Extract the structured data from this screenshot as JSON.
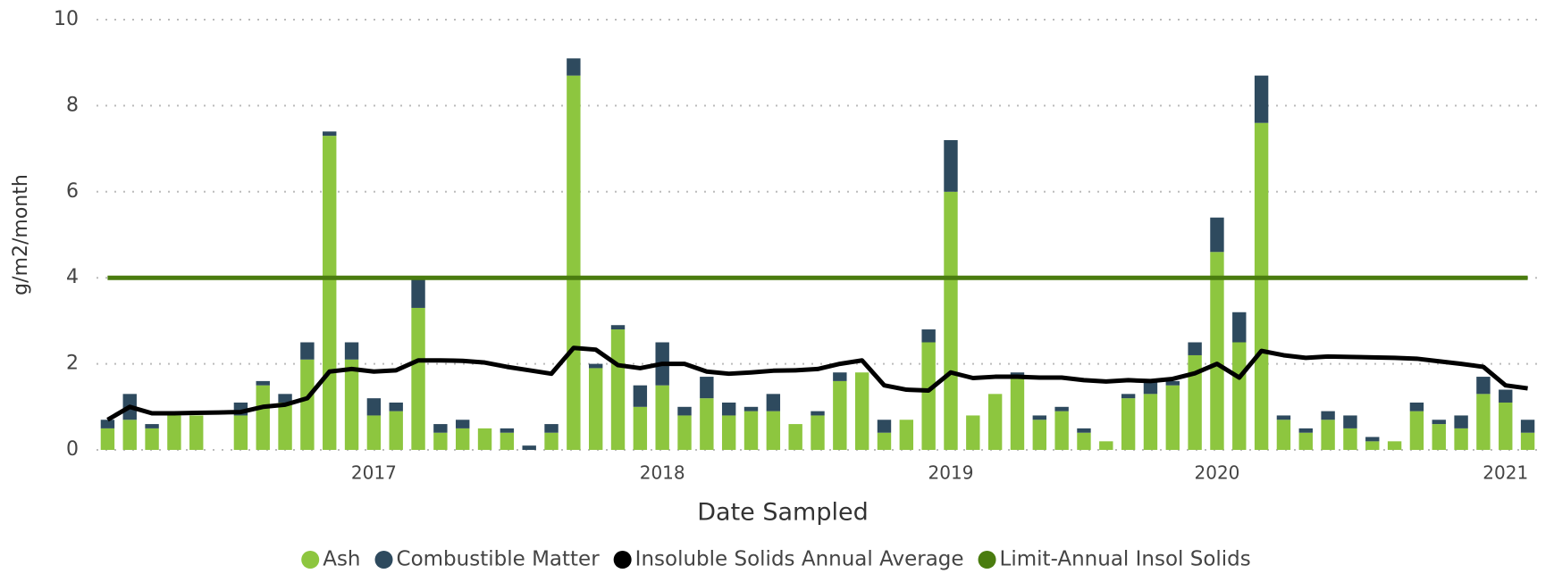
{
  "chart_data": {
    "type": "bar",
    "x_label": "Date Sampled",
    "y_label": "g/m2/month",
    "categories": [
      null,
      null,
      null,
      null,
      null,
      null,
      null,
      null,
      null,
      null,
      null,
      null,
      "2017",
      null,
      null,
      null,
      null,
      null,
      null,
      null,
      null,
      null,
      null,
      null,
      null,
      "2018",
      null,
      null,
      null,
      null,
      null,
      null,
      null,
      null,
      null,
      null,
      null,
      null,
      "2019",
      null,
      null,
      null,
      null,
      null,
      null,
      null,
      null,
      null,
      null,
      null,
      "2020",
      null,
      null,
      null,
      null,
      null,
      null,
      null,
      null,
      null,
      null,
      null,
      null,
      "2021",
      null
    ],
    "series": [
      {
        "name": "Ash",
        "color": "#8dc63f",
        "kind": "bar",
        "values": [
          0.5,
          0.7,
          0.5,
          0.8,
          0.8,
          null,
          0.8,
          1.5,
          1.1,
          2.1,
          7.3,
          2.1,
          0.8,
          0.9,
          3.3,
          0.4,
          0.5,
          0.5,
          0.4,
          0,
          0.4,
          8.7,
          1.9,
          2.8,
          1.0,
          1.5,
          0.8,
          1.2,
          0.8,
          0.9,
          0.9,
          0.6,
          0.8,
          1.6,
          1.8,
          0.4,
          0.7,
          2.5,
          6.0,
          0.8,
          1.3,
          1.7,
          0.7,
          0.9,
          0.4,
          0.2,
          1.2,
          1.3,
          1.5,
          2.2,
          4.6,
          2.5,
          7.6,
          0.7,
          0.4,
          0.7,
          0.5,
          0.2,
          0.2,
          0.9,
          0.6,
          0.5,
          1.3,
          1.1,
          0.4
        ]
      },
      {
        "name": "Combustible Matter",
        "color": "#2e4a5e",
        "kind": "bar",
        "values": [
          0.2,
          0.6,
          0.1,
          0,
          0,
          null,
          0.3,
          0.1,
          0.2,
          0.4,
          0.1,
          0.4,
          0.4,
          0.2,
          0.7,
          0.2,
          0.2,
          0,
          0.1,
          0.1,
          0.2,
          0.4,
          0.1,
          0.1,
          0.5,
          1.0,
          0.2,
          0.5,
          0.3,
          0.1,
          0.4,
          0,
          0.1,
          0.2,
          0,
          0.3,
          0,
          0.3,
          1.2,
          0,
          0,
          0.1,
          0.1,
          0.1,
          0.1,
          0,
          0.1,
          0.3,
          0.1,
          0.3,
          0.8,
          0.7,
          1.1,
          0.1,
          0.1,
          0.2,
          0.3,
          0.1,
          0,
          0.2,
          0.1,
          0.3,
          0.4,
          0.3,
          0.3
        ]
      },
      {
        "name": "Insoluble Solids Annual Average",
        "color": "#000000",
        "kind": "line",
        "values": [
          0.7,
          1.0,
          0.85,
          0.85,
          0.86,
          0.87,
          0.88,
          1.0,
          1.05,
          1.2,
          1.82,
          1.88,
          1.82,
          1.85,
          2.08,
          2.08,
          2.07,
          2.03,
          1.93,
          1.85,
          1.77,
          2.37,
          2.33,
          1.97,
          1.9,
          2.0,
          2.0,
          1.82,
          1.77,
          1.8,
          1.84,
          1.85,
          1.88,
          2.0,
          2.08,
          1.5,
          1.4,
          1.38,
          1.8,
          1.67,
          1.7,
          1.7,
          1.68,
          1.68,
          1.62,
          1.59,
          1.62,
          1.6,
          1.65,
          1.78,
          2.0,
          1.68,
          2.3,
          2.2,
          2.14,
          2.17,
          2.16,
          2.15,
          2.14,
          2.12,
          2.06,
          2.0,
          1.93,
          1.5,
          1.43
        ]
      },
      {
        "name": "Limit-Annual Insol Solids",
        "color": "#4a7c0f",
        "kind": "line",
        "values": [
          4,
          4,
          4,
          4,
          4,
          4,
          4,
          4,
          4,
          4,
          4,
          4,
          4,
          4,
          4,
          4,
          4,
          4,
          4,
          4,
          4,
          4,
          4,
          4,
          4,
          4,
          4,
          4,
          4,
          4,
          4,
          4,
          4,
          4,
          4,
          4,
          4,
          4,
          4,
          4,
          4,
          4,
          4,
          4,
          4,
          4,
          4,
          4,
          4,
          4,
          4,
          4,
          4,
          4,
          4,
          4,
          4,
          4,
          4,
          4,
          4,
          4,
          4,
          4,
          4
        ]
      }
    ],
    "ylim": [
      0,
      10
    ],
    "yticks": [
      0,
      2,
      4,
      6,
      8,
      10
    ],
    "grid": true,
    "stacked": true,
    "legend": "bottom"
  }
}
